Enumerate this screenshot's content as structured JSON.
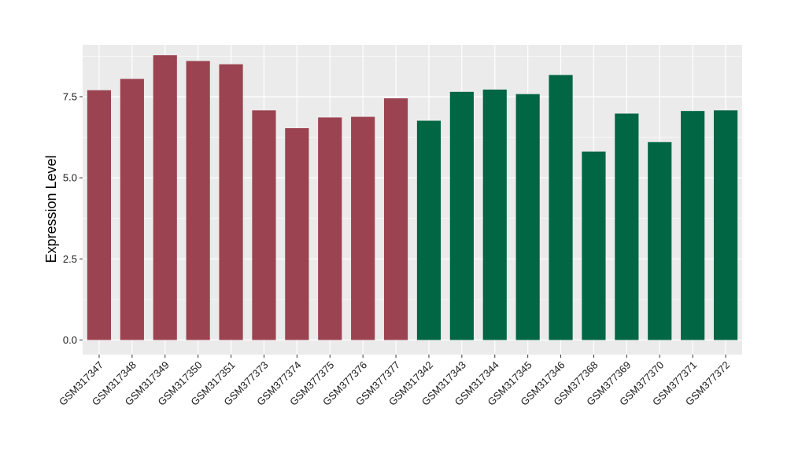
{
  "chart_data": {
    "type": "bar",
    "ylabel": "Expression Level",
    "xlabel": "",
    "ylim": [
      -0.45,
      9.1
    ],
    "yticks": [
      0.0,
      2.5,
      5.0,
      7.5
    ],
    "ytick_labels": [
      "0.0",
      "2.5",
      "5.0",
      "7.5"
    ],
    "grid": true,
    "legend": "none",
    "categories": [
      "GSM317347",
      "GSM317348",
      "GSM317349",
      "GSM317350",
      "GSM317351",
      "GSM377373",
      "GSM377374",
      "GSM377375",
      "GSM377376",
      "GSM377377",
      "GSM317342",
      "GSM317343",
      "GSM317344",
      "GSM317345",
      "GSM317346",
      "GSM377368",
      "GSM377369",
      "GSM377370",
      "GSM377371",
      "GSM377372"
    ],
    "values": [
      7.7,
      8.05,
      8.78,
      8.6,
      8.5,
      7.08,
      6.53,
      6.86,
      6.88,
      7.45,
      6.76,
      7.65,
      7.72,
      7.58,
      8.17,
      5.81,
      6.98,
      6.1,
      7.06,
      7.08
    ],
    "bar_colors": [
      "#9b4350",
      "#9b4350",
      "#9b4350",
      "#9b4350",
      "#9b4350",
      "#9b4350",
      "#9b4350",
      "#9b4350",
      "#9b4350",
      "#9b4350",
      "#006644",
      "#006644",
      "#006644",
      "#006644",
      "#006644",
      "#006644",
      "#006644",
      "#006644",
      "#006644",
      "#006644"
    ],
    "panel_background": "#ebebeb",
    "grid_color": "#ffffff"
  }
}
